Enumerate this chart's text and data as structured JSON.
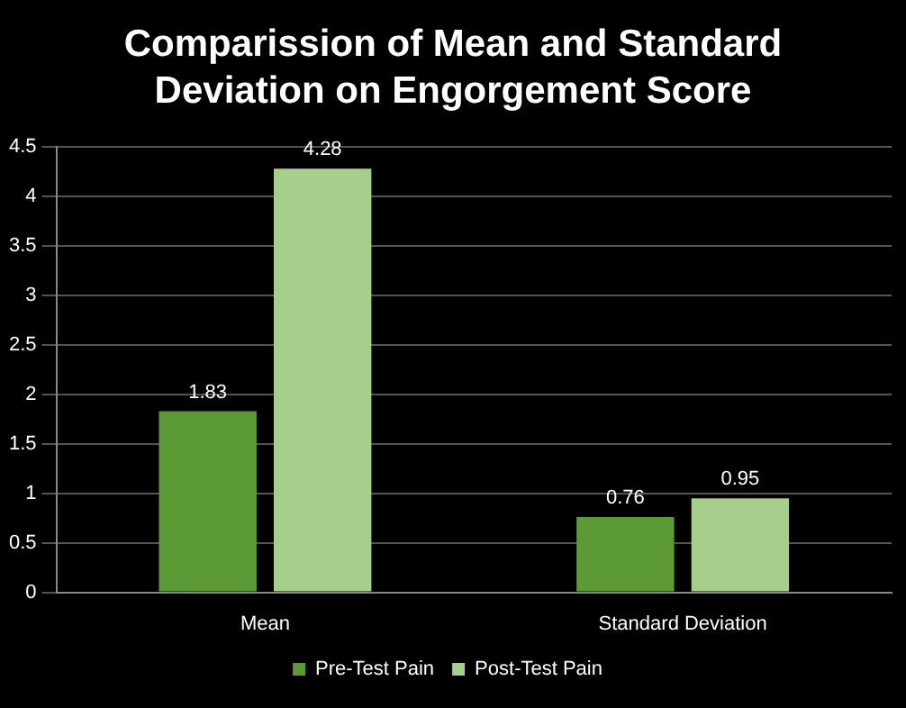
{
  "chart_data": {
    "type": "bar",
    "title": "Comparission of Mean and Standard Deviation on Engorgement Score",
    "categories": [
      "Mean",
      "Standard Deviation"
    ],
    "series": [
      {
        "name": "Pre-Test Pain",
        "color": "#5c9a35",
        "values": [
          1.83,
          0.76
        ]
      },
      {
        "name": "Post-Test Pain",
        "color": "#a6cf8c",
        "values": [
          4.28,
          0.95
        ]
      }
    ],
    "ylim": [
      0,
      4.5
    ],
    "yticks": [
      0,
      0.5,
      1,
      1.5,
      2,
      2.5,
      3,
      3.5,
      4,
      4.5
    ],
    "grid": "y",
    "legend": "bottom",
    "data_labels": true
  }
}
